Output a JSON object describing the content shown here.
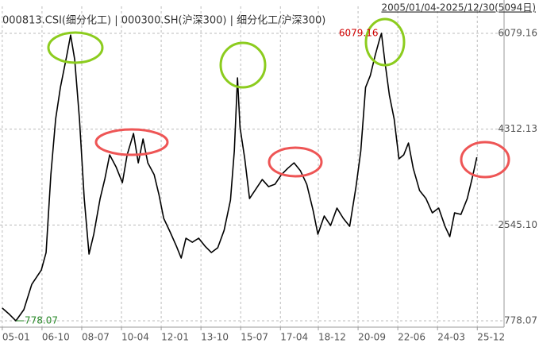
{
  "chart_data": {
    "type": "line",
    "title": "000813.CSI(细分化工) | 000300.SH(沪深300) | 细分化工/沪深300)",
    "date_range": "2005/01/04-2025/12/30(5094日)",
    "max_label": "6079.16",
    "min_label": "778.07",
    "xlim": [
      2004.9,
      2027.1
    ],
    "xticks": [
      {
        "value": 2005.0,
        "label": "05-01"
      },
      {
        "value": 2006.75,
        "label": "06-10"
      },
      {
        "value": 2008.5,
        "label": "08-07"
      },
      {
        "value": 2010.25,
        "label": "10-04"
      },
      {
        "value": 2012.0,
        "label": "12-01"
      },
      {
        "value": 2013.75,
        "label": "13-10"
      },
      {
        "value": 2015.5,
        "label": "15-07"
      },
      {
        "value": 2017.25,
        "label": "17-04"
      },
      {
        "value": 2018.92,
        "label": "18-12"
      },
      {
        "value": 2020.67,
        "label": "20-09"
      },
      {
        "value": 2022.42,
        "label": "22-06"
      },
      {
        "value": 2024.17,
        "label": "24-03"
      },
      {
        "value": 2025.92,
        "label": "25-12"
      }
    ],
    "ylim": [
      661,
      6577
    ],
    "yticks": [
      778.07,
      {
        "value": 2545.1,
        "label": "2545.10"
      },
      4312.13,
      6079.16
    ],
    "grid": true,
    "color": "#000000",
    "x": [
      2005.0,
      2005.32,
      2005.6,
      2005.95,
      2006.3,
      2006.72,
      2006.93,
      2007.14,
      2007.35,
      2007.56,
      2007.84,
      2008.01,
      2008.19,
      2008.4,
      2008.61,
      2008.82,
      2009.03,
      2009.31,
      2009.52,
      2009.73,
      2010.01,
      2010.29,
      2010.5,
      2010.78,
      2010.99,
      2011.2,
      2011.41,
      2011.69,
      2011.9,
      2012.11,
      2012.39,
      2012.67,
      2012.88,
      2013.09,
      2013.37,
      2013.65,
      2013.93,
      2014.21,
      2014.49,
      2014.77,
      2015.05,
      2015.22,
      2015.36,
      2015.47,
      2015.68,
      2015.89,
      2016.17,
      2016.45,
      2016.73,
      2017.01,
      2017.29,
      2017.57,
      2017.85,
      2018.13,
      2018.41,
      2018.69,
      2018.9,
      2019.18,
      2019.46,
      2019.74,
      2020.02,
      2020.3,
      2020.58,
      2020.79,
      2021.0,
      2021.21,
      2021.42,
      2021.63,
      2021.7,
      2021.84,
      2022.05,
      2022.26,
      2022.47,
      2022.68,
      2022.89,
      2023.1,
      2023.38,
      2023.66,
      2023.94,
      2024.22,
      2024.5,
      2024.71,
      2024.92,
      2025.2,
      2025.48,
      2025.69,
      2025.9
    ],
    "values": [
      1012,
      895,
      778.07,
      983,
      1451,
      1715,
      2037,
      3472,
      4497,
      5082,
      5668,
      6048,
      5595,
      4497,
      3033,
      2008,
      2374,
      3033,
      3399,
      3838,
      3618,
      3325,
      3838,
      4233,
      3691,
      4131,
      3691,
      3472,
      3106,
      2667,
      2418,
      2154,
      1935,
      2301,
      2227,
      2301,
      2154,
      2037,
      2125,
      2447,
      3003,
      3911,
      5258,
      4350,
      3765,
      3033,
      3208,
      3384,
      3252,
      3296,
      3472,
      3589,
      3691,
      3545,
      3296,
      2813,
      2374,
      2711,
      2535,
      2857,
      2667,
      2520,
      3252,
      3911,
      5082,
      5302,
      5668,
      5990,
      6079.16,
      5595,
      4936,
      4497,
      3765,
      3838,
      4057,
      3589,
      3179,
      3033,
      2769,
      2857,
      2520,
      2330,
      2769,
      2740,
      3033,
      3399,
      3794
    ]
  }
}
